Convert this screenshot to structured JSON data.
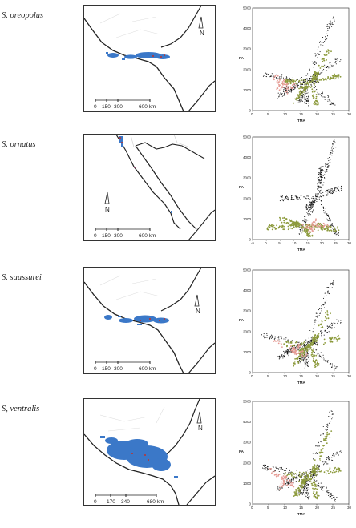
{
  "figure": {
    "panels": [
      {
        "species": "S. oreopolus",
        "map": {
          "scale_labels": [
            "0",
            "150",
            "300",
            "600 km"
          ],
          "north": "N"
        },
        "plot": {
          "xlabel": "TMA",
          "ylabel": "PA",
          "x_ticks": [
            "0",
            "5",
            "10",
            "15",
            "20",
            "25",
            "30"
          ],
          "y_ticks": [
            "0",
            "1000",
            "2000",
            "3000",
            "4000",
            "5000"
          ]
        }
      },
      {
        "species": "S. ornatus",
        "map": {
          "scale_labels": [
            "0",
            "150",
            "300",
            "600 km"
          ],
          "north": "N"
        },
        "plot": {
          "xlabel": "TMA",
          "ylabel": "PA",
          "x_ticks": [
            "-5",
            "0",
            "5",
            "10",
            "15",
            "20",
            "25",
            "30"
          ],
          "y_ticks": [
            "0",
            "1000",
            "2000",
            "3000",
            "4000",
            "5000"
          ]
        }
      },
      {
        "species": "S. saussurei",
        "map": {
          "scale_labels": [
            "0",
            "150",
            "300",
            "600 km"
          ],
          "north": "N"
        },
        "plot": {
          "xlabel": "TMA",
          "ylabel": "PA",
          "x_ticks": [
            "0",
            "5",
            "10",
            "15",
            "20",
            "25",
            "30"
          ],
          "y_ticks": [
            "0",
            "1000",
            "2000",
            "3000",
            "4000",
            "5000"
          ]
        }
      },
      {
        "species": "S, ventralis",
        "map": {
          "scale_labels": [
            "0",
            "170",
            "340",
            "680 km"
          ],
          "north": "N"
        },
        "plot": {
          "xlabel": "TMA",
          "ylabel": "PA",
          "x_ticks": [
            "0",
            "5",
            "10",
            "15",
            "20",
            "25",
            "30"
          ],
          "y_ticks": [
            "0",
            "1000",
            "2000",
            "3000",
            "4000",
            "5000"
          ]
        }
      }
    ],
    "colors": {
      "background_points": "#111111",
      "suitable_points": "#8c9a3c",
      "occurrence_points": "#e59a93",
      "distribution": "#3b78c8",
      "localities": "#c0302a"
    }
  },
  "chart_data": [
    {
      "type": "scatter",
      "panel": "S. oreopolus",
      "xlabel": "TMA",
      "ylabel": "PA",
      "xlim": [
        0,
        30
      ],
      "ylim": [
        0,
        5000
      ],
      "series": [
        {
          "cloud": [
            [
              3,
              1800
            ],
            [
              10,
              1000
            ],
            [
              15,
              500
            ],
            [
              20,
              1500
            ],
            [
              25,
              4500
            ],
            [
              27,
              2500
            ],
            [
              26,
              200
            ],
            [
              17,
              300
            ],
            [
              8,
              700
            ]
          ]
        },
        {
          "cloud": [
            [
              10,
              1400
            ],
            [
              20,
              1800
            ],
            [
              24,
              3000
            ],
            [
              27,
              1700
            ],
            [
              20,
              300
            ],
            [
              13,
              400
            ],
            [
              15,
              1000
            ]
          ]
        },
        {
          "cloud": [
            [
              7,
              1600
            ],
            [
              10,
              1500
            ],
            [
              13,
              1200
            ],
            [
              11,
              900
            ],
            [
              8,
              1100
            ]
          ]
        }
      ]
    },
    {
      "type": "scatter",
      "panel": "S. ornatus",
      "xlabel": "TMA",
      "ylabel": "PA",
      "xlim": [
        -5,
        30
      ],
      "ylim": [
        0,
        5000
      ],
      "series": [
        {
          "cloud": [
            [
              5,
              2000
            ],
            [
              15,
              1500
            ],
            [
              20,
              3500
            ],
            [
              25,
              4800
            ],
            [
              27,
              2500
            ],
            [
              26,
              200
            ],
            [
              12,
              300
            ]
          ]
        },
        {
          "cloud": [
            [
              0,
              600
            ],
            [
              5,
              1000
            ],
            [
              10,
              800
            ],
            [
              20,
              700
            ],
            [
              26,
              500
            ],
            [
              16,
              200
            ]
          ]
        },
        {
          "cloud": [
            [
              12,
              600
            ],
            [
              18,
              900
            ],
            [
              22,
              700
            ],
            [
              16,
              400
            ]
          ]
        }
      ]
    },
    {
      "type": "scatter",
      "panel": "S. saussurei",
      "xlabel": "TMA",
      "ylabel": "PA",
      "xlim": [
        0,
        30
      ],
      "ylim": [
        0,
        5000
      ],
      "series": [
        {
          "cloud": [
            [
              3,
              1800
            ],
            [
              10,
              1000
            ],
            [
              15,
              500
            ],
            [
              20,
              1500
            ],
            [
              25,
              4500
            ],
            [
              27,
              2500
            ],
            [
              26,
              200
            ],
            [
              17,
              300
            ],
            [
              8,
              700
            ]
          ]
        },
        {
          "cloud": [
            [
              10,
              1400
            ],
            [
              20,
              1800
            ],
            [
              24,
              3000
            ],
            [
              27,
              1700
            ],
            [
              20,
              300
            ],
            [
              13,
              400
            ],
            [
              15,
              1000
            ]
          ]
        },
        {
          "cloud": [
            [
              7,
              1500
            ],
            [
              12,
              1100
            ],
            [
              15,
              1300
            ],
            [
              17,
              800
            ],
            [
              13,
              1000
            ]
          ]
        }
      ]
    },
    {
      "type": "scatter",
      "panel": "S, ventralis",
      "xlabel": "TMA",
      "ylabel": "PA",
      "xlim": [
        0,
        30
      ],
      "ylim": [
        0,
        5000
      ],
      "series": [
        {
          "cloud": [
            [
              3,
              1800
            ],
            [
              10,
              1000
            ],
            [
              15,
              500
            ],
            [
              20,
              1500
            ],
            [
              25,
              4500
            ],
            [
              27,
              2500
            ],
            [
              26,
              200
            ],
            [
              17,
              300
            ],
            [
              8,
              700
            ]
          ]
        },
        {
          "cloud": [
            [
              10,
              1400
            ],
            [
              20,
              1800
            ],
            [
              24,
              3500
            ],
            [
              27,
              1700
            ],
            [
              20,
              300
            ],
            [
              13,
              400
            ],
            [
              15,
              1000
            ]
          ]
        },
        {
          "cloud": [
            [
              6,
              1700
            ],
            [
              10,
              1300
            ],
            [
              13,
              900
            ],
            [
              9,
              800
            ]
          ]
        }
      ]
    }
  ]
}
